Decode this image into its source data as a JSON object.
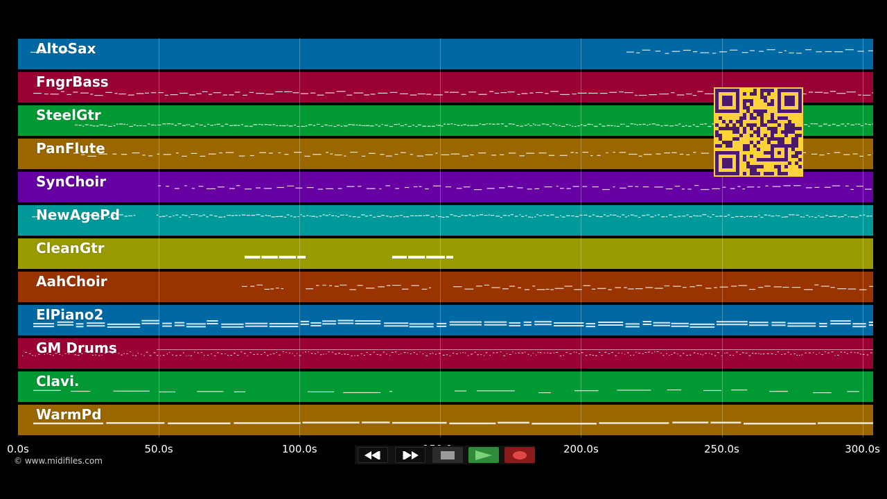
{
  "tracks": [
    {
      "name": "AltoSax",
      "color": "#0068a3"
    },
    {
      "name": "FngrBass",
      "color": "#990033"
    },
    {
      "name": "SteelGtr",
      "color": "#009933"
    },
    {
      "name": "PanFlute",
      "color": "#996600"
    },
    {
      "name": "SynChoir",
      "color": "#6600a3"
    },
    {
      "name": "NewAgePd",
      "color": "#00999a"
    },
    {
      "name": "CleanGtr",
      "color": "#999900"
    },
    {
      "name": "AahChoir",
      "color": "#993300"
    },
    {
      "name": "ElPiano2",
      "color": "#0068a3"
    },
    {
      "name": "GM Drums",
      "color": "#990033"
    },
    {
      "name": "Clavi.",
      "color": "#009933"
    },
    {
      "name": "WarmPd",
      "color": "#996600"
    }
  ],
  "timeline": {
    "ticks": [
      "0.0s",
      "50.0s",
      "100.0s",
      "150.0s",
      "200.0s",
      "250.0s",
      "300.0s"
    ]
  },
  "footer": {
    "copyright": "© www.midifiles.com"
  },
  "transport": {
    "rewind_icon": "rewind-icon",
    "fast_forward_icon": "fast-forward-icon",
    "stop_icon": "stop-icon",
    "play_icon": "play-icon",
    "record_icon": "record-icon",
    "play_color": "#2e8b3a",
    "record_color": "#8b1a1a"
  },
  "qr": {
    "background": "#ffd23a",
    "foreground": "#4a1a6b"
  }
}
